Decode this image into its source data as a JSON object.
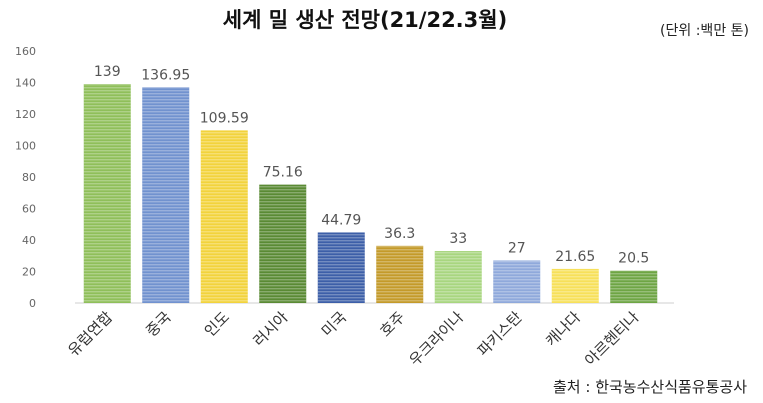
{
  "chart_data": {
    "type": "bar",
    "title": "세계 밀 생산 전망(21/22.3월)",
    "unit_note": "(단위 :백만 톤)",
    "source_note": "출처 : 한국농수산식품유통공사",
    "categories": [
      "유럽연합",
      "중국",
      "인도",
      "러시아",
      "미국",
      "호주",
      "우크라이나",
      "파키스탄",
      "캐나다",
      "아르헨티나"
    ],
    "values": [
      139,
      136.95,
      109.59,
      75.16,
      44.79,
      36.3,
      33,
      27,
      21.65,
      20.5
    ],
    "data_labels": [
      "139",
      "136.95",
      "109.59",
      "75.16",
      "44.79",
      "36.3",
      "33",
      "27",
      "21.65",
      "20.5"
    ],
    "bar_colors": [
      "#8fbf5a",
      "#7192cf",
      "#f2d33c",
      "#5a8a34",
      "#3d5fa8",
      "#c49a2a",
      "#a8d67f",
      "#8fa9db",
      "#f7e05a",
      "#6ea544"
    ],
    "ylim": [
      0,
      160
    ],
    "yticks": [
      0,
      20,
      40,
      60,
      80,
      100,
      120,
      140,
      160
    ],
    "grid": false,
    "legend": "none"
  }
}
